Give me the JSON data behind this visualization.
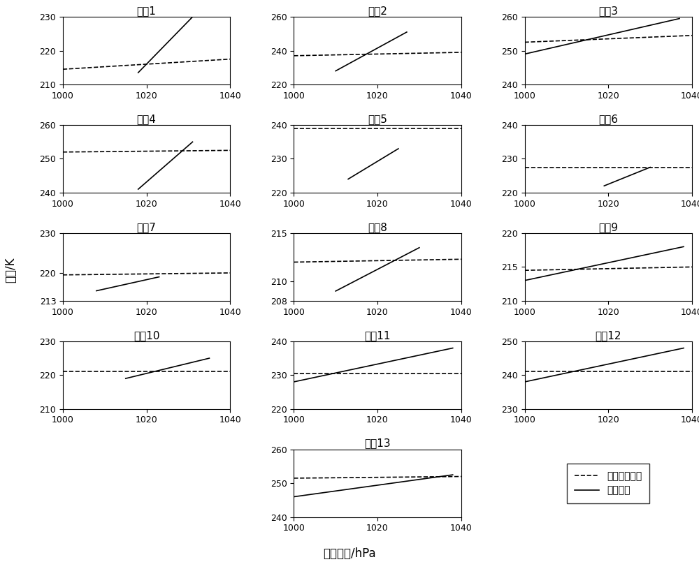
{
  "channels": [
    "1",
    "2",
    "3",
    "4",
    "5",
    "6",
    "7",
    "8",
    "9",
    "10",
    "11",
    "12",
    "13"
  ],
  "x_range": [
    1000,
    1040
  ],
  "x_ticks": [
    1000,
    1020,
    1040
  ],
  "subplots": {
    "1": {
      "ylim": [
        210,
        230
      ],
      "yticks": [
        210,
        220,
        230
      ],
      "dashed": [
        1000,
        214.5,
        1040,
        217.5
      ],
      "solid": [
        1018,
        213.5,
        1031,
        230
      ]
    },
    "2": {
      "ylim": [
        220,
        260
      ],
      "yticks": [
        220,
        240,
        260
      ],
      "dashed": [
        1000,
        237,
        1040,
        239
      ],
      "solid": [
        1010,
        228,
        1027,
        251
      ]
    },
    "3": {
      "ylim": [
        240,
        260
      ],
      "yticks": [
        240,
        250,
        260
      ],
      "dashed": [
        1000,
        252.5,
        1040,
        254.5
      ],
      "solid": [
        1000,
        249,
        1037,
        259.5
      ]
    },
    "4": {
      "ylim": [
        240,
        260
      ],
      "yticks": [
        240,
        250,
        260
      ],
      "dashed": [
        1000,
        252,
        1040,
        252.5
      ],
      "solid": [
        1018,
        241,
        1031,
        255
      ]
    },
    "5": {
      "ylim": [
        220,
        240
      ],
      "yticks": [
        220,
        230,
        240
      ],
      "dashed": [
        1000,
        239,
        1040,
        239
      ],
      "solid": [
        1013,
        224,
        1025,
        233
      ]
    },
    "6": {
      "ylim": [
        220,
        240
      ],
      "yticks": [
        220,
        230,
        240
      ],
      "dashed": [
        1000,
        227.5,
        1040,
        227.5
      ],
      "solid": [
        1019,
        222,
        1030,
        227.5
      ]
    },
    "7": {
      "ylim": [
        213,
        230
      ],
      "yticks": [
        213,
        220,
        230
      ],
      "dashed": [
        1000,
        219.5,
        1040,
        220
      ],
      "solid": [
        1008,
        215.5,
        1023,
        219
      ]
    },
    "8": {
      "ylim": [
        208,
        215
      ],
      "yticks": [
        208,
        210,
        215
      ],
      "dashed": [
        1000,
        212,
        1040,
        212.3
      ],
      "solid": [
        1010,
        209,
        1030,
        213.5
      ]
    },
    "9": {
      "ylim": [
        210,
        220
      ],
      "yticks": [
        210,
        215,
        220
      ],
      "dashed": [
        1000,
        214.5,
        1040,
        215
      ],
      "solid": [
        1000,
        213,
        1038,
        218
      ]
    },
    "10": {
      "ylim": [
        210,
        230
      ],
      "yticks": [
        210,
        220,
        230
      ],
      "dashed": [
        1000,
        221,
        1040,
        221
      ],
      "solid": [
        1015,
        219,
        1035,
        225
      ]
    },
    "11": {
      "ylim": [
        220,
        240
      ],
      "yticks": [
        220,
        230,
        240
      ],
      "dashed": [
        1000,
        230.5,
        1040,
        230.5
      ],
      "solid": [
        1000,
        228,
        1038,
        238
      ]
    },
    "12": {
      "ylim": [
        230,
        250
      ],
      "yticks": [
        230,
        240,
        250
      ],
      "dashed": [
        1000,
        241,
        1040,
        241
      ],
      "solid": [
        1000,
        238,
        1038,
        248
      ]
    },
    "13": {
      "ylim": [
        240,
        260
      ],
      "yticks": [
        240,
        250,
        260
      ],
      "dashed": [
        1000,
        251.5,
        1040,
        252
      ],
      "solid": [
        1000,
        246,
        1038,
        252.5
      ]
    }
  },
  "xlabel": "海面气压/hPa",
  "ylabel": "亮温/K",
  "legend_dashed": "人工扰动大气",
  "legend_solid": "自然大气",
  "title_prefix": "通道",
  "line_color": "#000000",
  "linewidth": 1.2
}
